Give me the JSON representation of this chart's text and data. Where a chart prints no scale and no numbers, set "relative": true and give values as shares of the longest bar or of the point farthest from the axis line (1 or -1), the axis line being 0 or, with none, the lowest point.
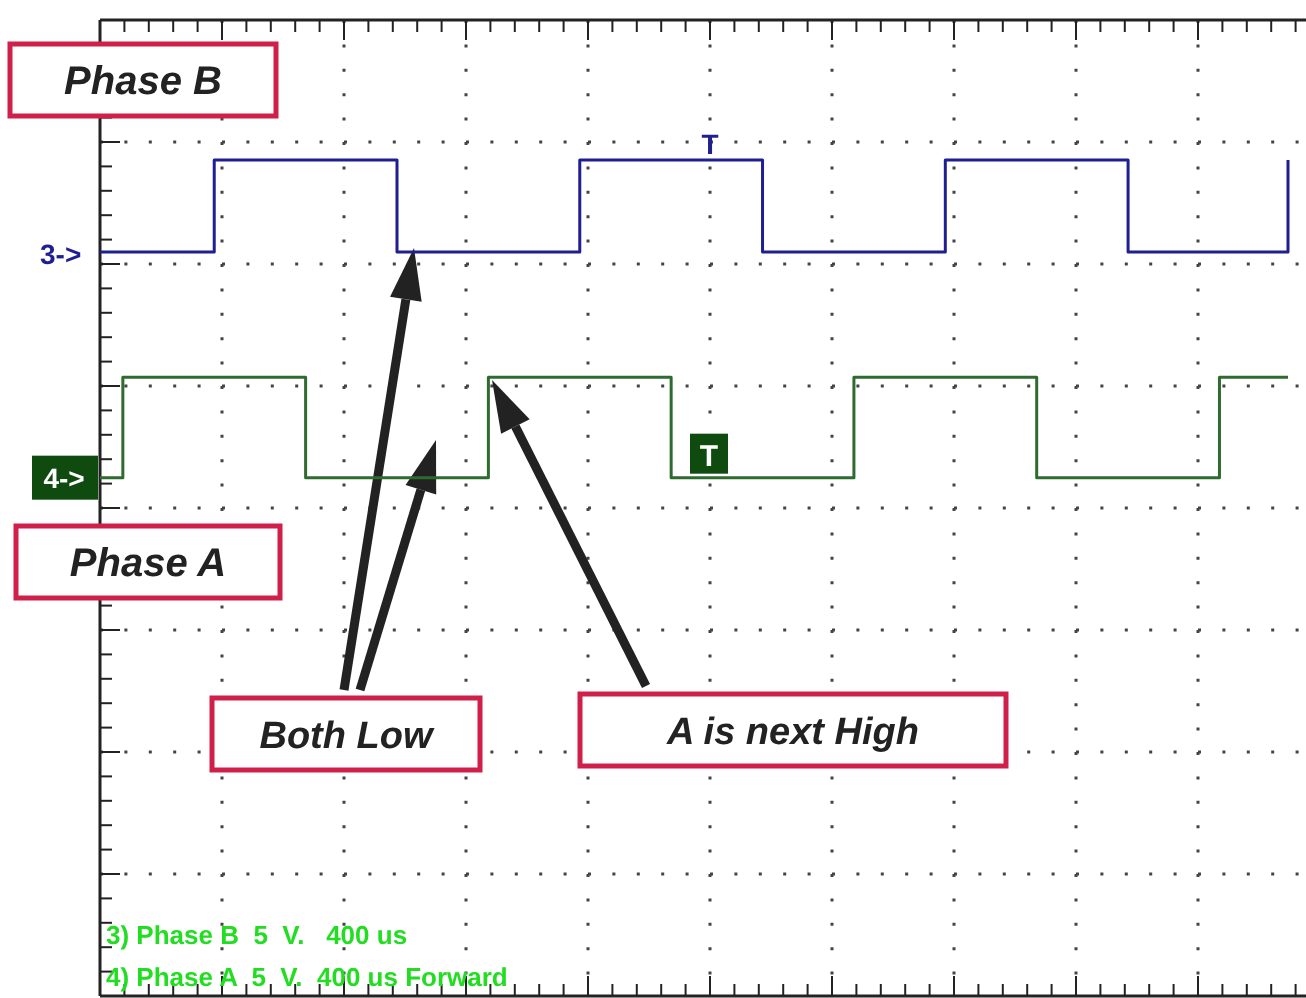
{
  "chart_data": {
    "type": "step",
    "relative": true,
    "grid": true,
    "line_style": "solid",
    "marker": "none",
    "categories": [
      null,
      null,
      null,
      null,
      null,
      null,
      null,
      null,
      null,
      null,
      null,
      null,
      null,
      null,
      null,
      null,
      null,
      null,
      null,
      null,
      null,
      null,
      null,
      null,
      null,
      null,
      null,
      null,
      null,
      null,
      null,
      null,
      null,
      null,
      null,
      null,
      null,
      null,
      null,
      null,
      null,
      null,
      null,
      null,
      null,
      null,
      null,
      null,
      null,
      null,
      null,
      null,
      null
    ],
    "series": [
      {
        "name": "Phase B",
        "color": "#1f1f8f",
        "values": [
          0.89,
          0.89,
          0.89,
          0.89,
          0.89,
          1,
          1,
          1,
          1,
          1,
          1,
          1,
          1,
          0.89,
          0.89,
          0.89,
          0.89,
          0.89,
          0.89,
          0.89,
          0.89,
          1,
          1,
          1,
          1,
          1,
          1,
          1,
          1,
          0.89,
          0.89,
          0.89,
          0.89,
          0.89,
          0.89,
          0.89,
          0.89,
          1,
          1,
          1,
          1,
          1,
          1,
          1,
          1,
          0.89,
          0.89,
          0.89,
          0.89,
          0.89,
          0.89,
          0.89,
          1
        ]
      },
      {
        "name": "Phase A",
        "color": "#2f6b2f",
        "values": [
          0.62,
          0.74,
          0.74,
          0.74,
          0.74,
          0.74,
          0.74,
          0.74,
          0.74,
          0.62,
          0.62,
          0.62,
          0.62,
          0.62,
          0.62,
          0.62,
          0.62,
          0.74,
          0.74,
          0.74,
          0.74,
          0.74,
          0.74,
          0.74,
          0.74,
          0.62,
          0.62,
          0.62,
          0.62,
          0.62,
          0.62,
          0.62,
          0.62,
          0.74,
          0.74,
          0.74,
          0.74,
          0.74,
          0.74,
          0.74,
          0.74,
          0.62,
          0.62,
          0.62,
          0.62,
          0.62,
          0.62,
          0.62,
          0.62,
          0.74,
          0.74,
          0.74,
          0.74
        ]
      }
    ],
    "annotations": [
      "Both Low",
      "A is next High",
      "3) Phase B  5  V.   400 us",
      "4) Phase A  5  V.  400 us Forward",
      "3->",
      "4->",
      "T",
      "T"
    ]
  }
}
